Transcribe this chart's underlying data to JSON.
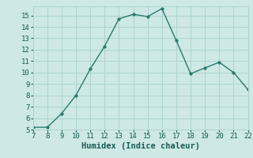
{
  "x": [
    7,
    8,
    9,
    10,
    11,
    12,
    13,
    14,
    15,
    16,
    17,
    18,
    19,
    20,
    21,
    22
  ],
  "y": [
    5.2,
    5.2,
    6.4,
    8.0,
    10.3,
    12.3,
    14.7,
    15.1,
    14.9,
    15.6,
    12.8,
    9.9,
    10.4,
    10.9,
    10.0,
    8.5
  ],
  "xlim": [
    7,
    22
  ],
  "ylim": [
    5,
    15.8
  ],
  "xticks": [
    7,
    8,
    9,
    10,
    11,
    12,
    13,
    14,
    15,
    16,
    17,
    18,
    19,
    20,
    21,
    22
  ],
  "yticks": [
    5,
    6,
    7,
    8,
    9,
    10,
    11,
    12,
    13,
    14,
    15
  ],
  "xlabel": "Humidex (Indice chaleur)",
  "line_color": "#2a7a6f",
  "marker_color": "#2a7a6f",
  "bg_color": "#cde8e5",
  "grid_color": "#aed4d0",
  "tick_fontsize": 6.5,
  "label_fontsize": 7.5
}
